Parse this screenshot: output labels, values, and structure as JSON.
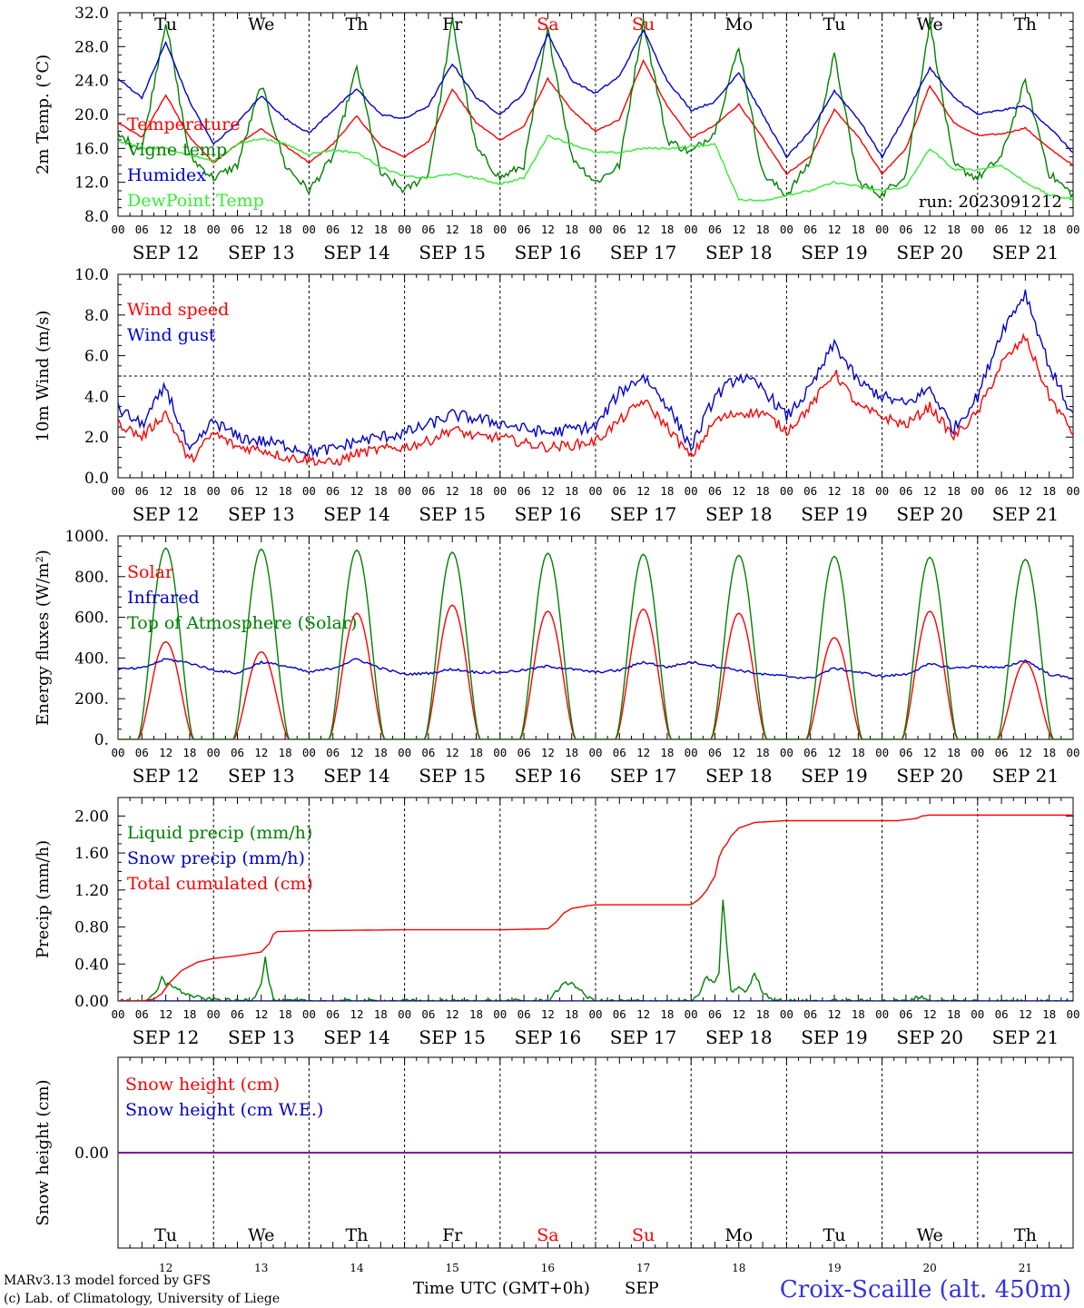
{
  "meta": {
    "model_label": "MARv3.13 model forced by GFS",
    "credit_label": "(c) Lab. of Climatology, University of Liege",
    "time_axis_label": "Time UTC (GMT+0h)",
    "month_label": "SEP",
    "location_label": "Croix-Scaille (alt. 450m)",
    "run_label": "run: 2023091212"
  },
  "days": [
    {
      "abbr": "Tu",
      "date": "SEP 12",
      "num": "12",
      "weekend": false
    },
    {
      "abbr": "We",
      "date": "SEP 13",
      "num": "13",
      "weekend": false
    },
    {
      "abbr": "Th",
      "date": "SEP 14",
      "num": "14",
      "weekend": false
    },
    {
      "abbr": "Fr",
      "date": "SEP 15",
      "num": "15",
      "weekend": false
    },
    {
      "abbr": "Sa",
      "date": "SEP 16",
      "num": "16",
      "weekend": true
    },
    {
      "abbr": "Su",
      "date": "SEP 17",
      "num": "17",
      "weekend": true
    },
    {
      "abbr": "Mo",
      "date": "SEP 18",
      "num": "18",
      "weekend": false
    },
    {
      "abbr": "Tu",
      "date": "SEP 19",
      "num": "19",
      "weekend": false
    },
    {
      "abbr": "We",
      "date": "SEP 20",
      "num": "20",
      "weekend": false
    },
    {
      "abbr": "Th",
      "date": "SEP 21",
      "num": "21",
      "weekend": false
    }
  ],
  "hour_labels": [
    "00",
    "06",
    "12",
    "18"
  ],
  "colors": {
    "red": "#ff0000",
    "dark_green": "#008000",
    "blue": "#0000cc",
    "light_green": "#33ee33",
    "purple": "#7f00a0",
    "weekend": "#ff0000",
    "location": "#3333dd"
  },
  "chart_data": [
    {
      "id": "temperature",
      "type": "line",
      "ylabel": "2m Temp. (°C)",
      "ylim": [
        8,
        32
      ],
      "yticks": [
        "8.0",
        "12.0",
        "16.0",
        "20.0",
        "24.0",
        "28.0",
        "32.0"
      ],
      "ytick_values": [
        8,
        12,
        16,
        20,
        24,
        28,
        32
      ],
      "x_unit": "hours since SEP 12 00 UTC",
      "show_days_top": true,
      "show_dates_below": true,
      "series": [
        {
          "name": "Temperature",
          "color": "red",
          "noise": 0.08,
          "x": [
            0,
            6,
            12,
            18,
            24,
            30,
            36,
            42,
            48,
            54,
            60,
            66,
            72,
            78,
            84,
            90,
            96,
            102,
            108,
            114,
            120,
            126,
            132,
            138,
            144,
            150,
            156,
            162,
            168,
            174,
            180,
            186,
            192,
            198,
            204,
            210,
            216,
            222,
            228,
            234,
            240
          ],
          "y": [
            19.0,
            17.3,
            22.3,
            17.3,
            14.3,
            16.5,
            18.3,
            16.3,
            14.3,
            16.5,
            19.8,
            16.3,
            15.0,
            16.8,
            23.0,
            19.0,
            17.0,
            18.6,
            24.2,
            20.5,
            18.0,
            19.4,
            26.4,
            21.0,
            17.2,
            18.7,
            21.2,
            17.2,
            13.0,
            15.0,
            20.6,
            17.4,
            13.0,
            16.0,
            23.4,
            19.0,
            17.5,
            17.7,
            18.4,
            16.0,
            14.0
          ]
        },
        {
          "name": "Vigne temp",
          "color": "dark_green",
          "noise": 0.5,
          "x": [
            0,
            6,
            12,
            18,
            24,
            30,
            36,
            42,
            48,
            54,
            60,
            66,
            72,
            78,
            84,
            90,
            96,
            102,
            108,
            114,
            120,
            126,
            132,
            138,
            144,
            150,
            156,
            162,
            168,
            174,
            180,
            186,
            192,
            198,
            204,
            210,
            216,
            222,
            228,
            234,
            240
          ],
          "y": [
            17.5,
            16.0,
            31.0,
            15.0,
            12.5,
            14.0,
            23.5,
            14.0,
            11.0,
            15.0,
            25.5,
            13.0,
            11.0,
            13.0,
            31.0,
            16.0,
            12.5,
            14.0,
            30.0,
            15.0,
            12.0,
            14.0,
            31.0,
            17.0,
            15.5,
            18.0,
            28.0,
            13.0,
            10.5,
            14.5,
            27.0,
            12.0,
            10.5,
            13.0,
            31.0,
            14.0,
            12.5,
            15.0,
            24.0,
            13.0,
            10.5
          ]
        },
        {
          "name": "Humidex",
          "color": "blue",
          "noise": 0.12,
          "x": [
            0,
            6,
            12,
            18,
            24,
            30,
            36,
            42,
            48,
            54,
            60,
            66,
            72,
            78,
            84,
            90,
            96,
            102,
            108,
            114,
            120,
            126,
            132,
            138,
            144,
            150,
            156,
            162,
            168,
            174,
            180,
            186,
            192,
            198,
            204,
            210,
            216,
            222,
            228,
            234,
            240
          ],
          "y": [
            24.2,
            22.0,
            28.5,
            21.5,
            16.5,
            19.0,
            22.2,
            19.5,
            17.8,
            20.5,
            23.0,
            20.0,
            19.5,
            21.0,
            26.0,
            22.0,
            20.0,
            22.5,
            29.5,
            24.0,
            22.5,
            24.5,
            30.0,
            24.0,
            20.5,
            21.5,
            25.0,
            20.0,
            15.0,
            18.0,
            22.8,
            19.5,
            15.0,
            20.0,
            25.5,
            22.0,
            20.0,
            20.5,
            21.0,
            18.5,
            15.5
          ]
        },
        {
          "name": "DewPoint Temp",
          "color": "light_green",
          "noise": 0.12,
          "x": [
            0,
            6,
            12,
            18,
            24,
            30,
            36,
            42,
            48,
            54,
            60,
            66,
            72,
            78,
            84,
            90,
            96,
            102,
            108,
            114,
            120,
            126,
            132,
            138,
            144,
            150,
            156,
            162,
            168,
            174,
            180,
            186,
            192,
            198,
            204,
            210,
            216,
            222,
            228,
            234,
            240
          ],
          "y": [
            16.8,
            16.0,
            16.0,
            15.2,
            14.5,
            16.5,
            17.2,
            16.5,
            15.3,
            15.8,
            15.5,
            13.8,
            12.7,
            12.5,
            13.0,
            12.5,
            11.8,
            12.5,
            17.5,
            16.5,
            15.5,
            15.5,
            16.0,
            16.0,
            16.2,
            16.5,
            10.0,
            9.8,
            10.5,
            11.0,
            12.0,
            11.5,
            11.0,
            11.5,
            16.0,
            13.5,
            13.5,
            14.0,
            12.0,
            10.5,
            10.0
          ]
        }
      ]
    },
    {
      "id": "wind",
      "type": "line",
      "ylabel": "10m Wind (m/s)",
      "ylim": [
        0,
        10
      ],
      "yticks": [
        "0.0",
        "2.0",
        "4.0",
        "6.0",
        "8.0",
        "10.0"
      ],
      "ytick_values": [
        0,
        2,
        4,
        6,
        8,
        10
      ],
      "reference_line": 5,
      "x_unit": "hours since SEP 12 00 UTC",
      "show_days_top": false,
      "show_dates_below": true,
      "series": [
        {
          "name": "Wind speed",
          "color": "red",
          "noise": 0.25,
          "x": [
            0,
            6,
            12,
            18,
            24,
            30,
            36,
            42,
            48,
            54,
            60,
            66,
            72,
            78,
            84,
            90,
            96,
            102,
            108,
            114,
            120,
            126,
            132,
            138,
            144,
            150,
            156,
            162,
            168,
            174,
            180,
            186,
            192,
            198,
            204,
            210,
            216,
            222,
            228,
            234,
            240
          ],
          "y": [
            2.7,
            2.0,
            3.2,
            0.8,
            2.2,
            1.5,
            1.4,
            1.0,
            0.9,
            0.7,
            1.2,
            1.4,
            1.5,
            1.8,
            2.4,
            2.0,
            2.0,
            1.7,
            1.5,
            1.6,
            1.8,
            2.8,
            3.8,
            2.5,
            1.0,
            2.8,
            3.2,
            3.2,
            2.3,
            3.5,
            5.2,
            3.5,
            3.0,
            2.6,
            3.5,
            2.0,
            3.2,
            5.6,
            6.9,
            4.0,
            2.2
          ]
        },
        {
          "name": "Wind gust",
          "color": "blue",
          "noise": 0.3,
          "x": [
            0,
            6,
            12,
            18,
            24,
            30,
            36,
            42,
            48,
            54,
            60,
            66,
            72,
            78,
            84,
            90,
            96,
            102,
            108,
            114,
            120,
            126,
            132,
            138,
            144,
            150,
            156,
            162,
            168,
            174,
            180,
            186,
            192,
            198,
            204,
            210,
            216,
            222,
            228,
            234,
            240
          ],
          "y": [
            3.4,
            2.6,
            4.5,
            1.2,
            2.8,
            2.0,
            1.8,
            1.6,
            1.3,
            1.4,
            1.8,
            2.0,
            2.2,
            2.6,
            3.1,
            2.9,
            2.7,
            2.4,
            2.2,
            2.4,
            2.5,
            4.2,
            5.0,
            3.6,
            1.5,
            4.0,
            5.0,
            4.4,
            3.0,
            4.4,
            6.6,
            4.7,
            4.0,
            3.6,
            4.4,
            2.4,
            4.0,
            7.2,
            9.1,
            5.5,
            3.0
          ]
        }
      ]
    },
    {
      "id": "energy",
      "type": "line",
      "ylabel": "Energy fluxes (W/m²)",
      "ylim": [
        0,
        1000
      ],
      "yticks": [
        "0.",
        "200.",
        "400.",
        "600.",
        "800.",
        "1000."
      ],
      "ytick_values": [
        0,
        200,
        400,
        600,
        800,
        1000
      ],
      "x_unit": "hours since SEP 12 00 UTC",
      "show_days_top": false,
      "show_dates_below": true,
      "series": [
        {
          "name": "Solar",
          "color": "red",
          "noise": 0,
          "daily_peaks": [
            480,
            430,
            620,
            660,
            630,
            640,
            620,
            500,
            630,
            380
          ]
        },
        {
          "name": "Infrared",
          "color": "blue",
          "noise": 6,
          "x": [
            0,
            6,
            12,
            18,
            24,
            30,
            36,
            42,
            48,
            54,
            60,
            66,
            72,
            78,
            84,
            90,
            96,
            102,
            108,
            114,
            120,
            126,
            132,
            138,
            144,
            150,
            156,
            162,
            168,
            174,
            180,
            186,
            192,
            198,
            204,
            210,
            216,
            222,
            228,
            234,
            240
          ],
          "y": [
            345,
            350,
            395,
            375,
            340,
            325,
            380,
            360,
            330,
            350,
            395,
            350,
            320,
            325,
            345,
            330,
            330,
            340,
            360,
            345,
            330,
            340,
            380,
            355,
            380,
            360,
            340,
            320,
            310,
            300,
            350,
            330,
            310,
            320,
            370,
            350,
            360,
            350,
            390,
            320,
            300
          ]
        },
        {
          "name": "Top of Atmosphere (Solar)",
          "color": "dark_green",
          "noise": 0,
          "daily_peaks": [
            940,
            935,
            930,
            920,
            915,
            910,
            905,
            900,
            895,
            885
          ]
        }
      ]
    },
    {
      "id": "precip",
      "type": "line",
      "ylabel": "Precip (mm/h)",
      "ylim": [
        0,
        2.2
      ],
      "yticks": [
        "0.00",
        "0.40",
        "0.80",
        "1.20",
        "1.60",
        "2.00"
      ],
      "ytick_values": [
        0,
        0.4,
        0.8,
        1.2,
        1.6,
        2.0
      ],
      "x_unit": "hours since SEP 12 00 UTC",
      "show_days_top": false,
      "show_dates_below": true,
      "series": [
        {
          "name": "Liquid precip (mm/h)",
          "color": "dark_green",
          "noise": 0.02,
          "x": [
            0,
            6,
            8,
            10,
            11,
            12,
            13,
            14,
            16,
            18,
            20,
            22,
            24,
            30,
            34,
            36,
            37,
            38,
            39,
            40,
            42,
            48,
            60,
            66,
            72,
            96,
            108,
            110,
            112,
            114,
            116,
            118,
            120,
            144,
            146,
            147,
            148,
            150,
            151,
            152,
            153,
            154,
            156,
            158,
            160,
            162,
            164,
            166,
            168,
            190,
            198,
            200,
            202,
            204,
            240
          ],
          "y": [
            0,
            0,
            0.02,
            0.12,
            0.25,
            0.18,
            0.2,
            0.15,
            0.1,
            0.06,
            0.04,
            0.02,
            0.02,
            0,
            0.02,
            0.2,
            0.47,
            0.2,
            0.03,
            0,
            0,
            0,
            0,
            0,
            0,
            0,
            0,
            0.1,
            0.18,
            0.2,
            0.12,
            0.04,
            0,
            0,
            0.05,
            0.2,
            0.25,
            0.2,
            0.3,
            1.1,
            0.6,
            0.1,
            0.15,
            0.1,
            0.3,
            0.1,
            0.03,
            0.01,
            0,
            0,
            0,
            0.03,
            0.05,
            0,
            0
          ]
        },
        {
          "name": "Snow precip (mm/h)",
          "color": "blue",
          "noise": 0,
          "x": [
            0,
            240
          ],
          "y": [
            0,
            0
          ]
        },
        {
          "name": "Total cumulated (cm)",
          "color": "red",
          "noise": 0,
          "x": [
            0,
            6,
            9,
            11,
            13,
            16,
            20,
            24,
            30,
            36,
            38,
            39,
            40,
            48,
            72,
            96,
            108,
            110,
            112,
            114,
            118,
            120,
            144,
            146,
            148,
            149,
            150,
            151,
            152,
            153,
            154,
            156,
            160,
            168,
            192,
            196,
            200,
            201,
            202,
            204,
            240
          ],
          "y": [
            0,
            0,
            0.02,
            0.08,
            0.2,
            0.33,
            0.42,
            0.46,
            0.49,
            0.53,
            0.62,
            0.72,
            0.75,
            0.76,
            0.77,
            0.77,
            0.78,
            0.85,
            0.95,
            1.0,
            1.03,
            1.04,
            1.04,
            1.1,
            1.2,
            1.28,
            1.35,
            1.55,
            1.65,
            1.7,
            1.78,
            1.87,
            1.93,
            1.95,
            1.95,
            1.95,
            1.97,
            1.98,
            2.0,
            2.01,
            2.01
          ]
        }
      ]
    },
    {
      "id": "snow",
      "type": "line",
      "ylabel": "Snow height (cm)",
      "ylim": [
        -1,
        1
      ],
      "yticks": [
        "0.00"
      ],
      "ytick_values": [
        0
      ],
      "x_unit": "hours since SEP 12 00 UTC",
      "show_days_top": false,
      "show_dates_below": false,
      "show_days_bottom": true,
      "series": [
        {
          "name": "Snow height (cm)",
          "color": "red",
          "noise": 0,
          "x": [
            0,
            240
          ],
          "y": [
            0,
            0
          ]
        },
        {
          "name": "Snow height (cm W.E.)",
          "color": "blue",
          "noise": 0,
          "x": [
            0,
            240
          ],
          "y": [
            0,
            0
          ]
        }
      ]
    }
  ]
}
